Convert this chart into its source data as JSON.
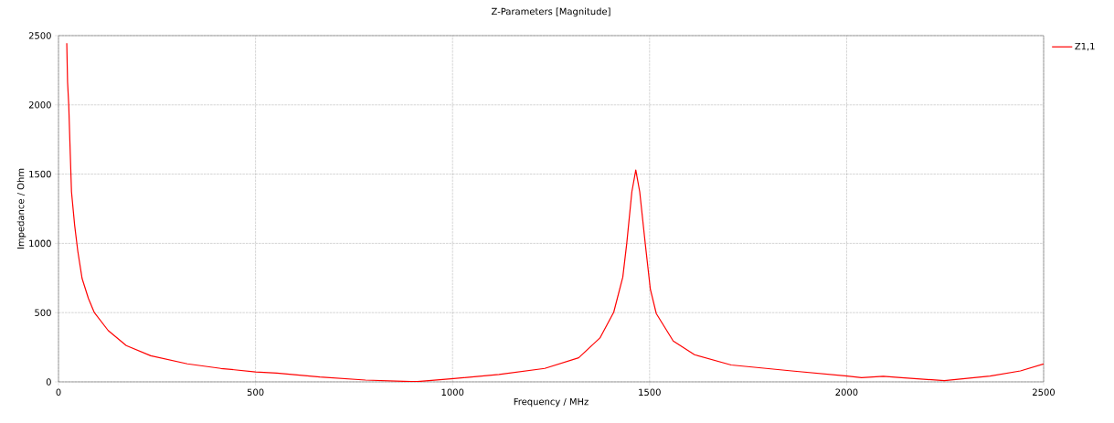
{
  "chart_data": {
    "type": "line",
    "title": "Z-Parameters [Magnitude]",
    "xlabel": "Frequency / MHz",
    "ylabel": "Impedance / Ohm",
    "series": [
      {
        "name": "Z1,1",
        "color": "#ff0000",
        "x": [
          21,
          23,
          26,
          30,
          33,
          41,
          49,
          60,
          76,
          91,
          126,
          172,
          234,
          327,
          412,
          500,
          554,
          663,
          779,
          895,
          911,
          1003,
          1118,
          1234,
          1320,
          1374,
          1409,
          1432,
          1442,
          1455,
          1465,
          1475,
          1489,
          1502,
          1517,
          1560,
          1614,
          1707,
          1861,
          2002,
          2038,
          2093,
          2139,
          2248,
          2364,
          2441,
          2500
        ],
        "values": [
          2445,
          2165,
          2000,
          1636,
          1372,
          1130,
          943,
          745,
          602,
          500,
          371,
          262,
          189,
          130,
          97,
          72,
          64,
          35,
          13,
          2,
          2,
          24,
          53,
          97,
          174,
          317,
          503,
          756,
          998,
          1372,
          1530,
          1372,
          998,
          668,
          493,
          295,
          196,
          122,
          79,
          42,
          31,
          40,
          31,
          9,
          42,
          79,
          130
        ]
      }
    ],
    "xlim": [
      0,
      2500
    ],
    "ylim": [
      0,
      2500
    ],
    "xticks": [
      0,
      500,
      1000,
      1500,
      2000,
      2500
    ],
    "yticks": [
      0,
      500,
      1000,
      1500,
      2000,
      2500
    ],
    "grid": true,
    "legend": "top right",
    "line_style": "solid"
  }
}
